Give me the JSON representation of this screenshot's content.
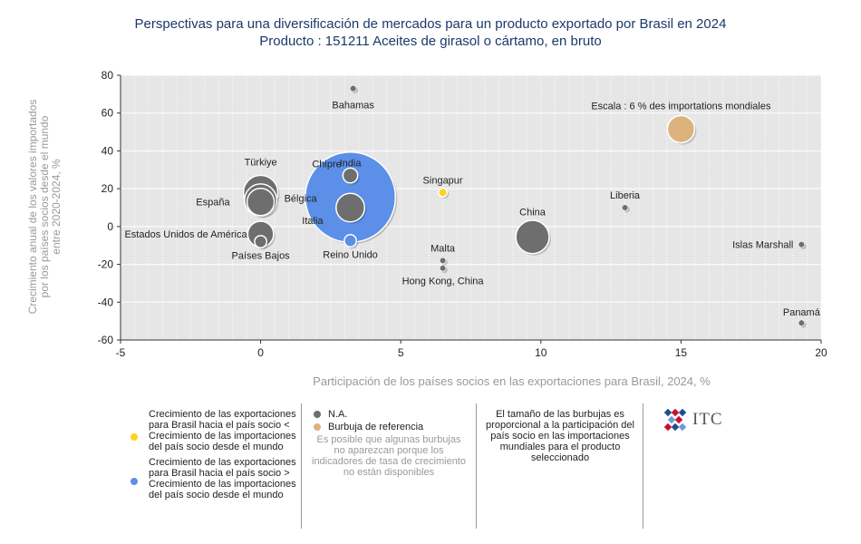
{
  "header": {
    "title_line1": "Perspectivas para una diversificación de mercados para un producto exportado por Brasil en 2024",
    "title_line2": "Producto : 151211 Aceites de girasol o cártamo, en bruto"
  },
  "colors": {
    "na": "#6e6e6e",
    "faster": "#5b8fe8",
    "slower": "#ffd21f",
    "reference": "#dcb27e",
    "plot_bg": "#e6e6e6"
  },
  "chart_data": {
    "type": "scatter",
    "xlabel": "Participación de los países socios en las exportaciones para Brasil, 2024, %",
    "ylabel_lines": [
      "Crecimiento anual de los valores importados",
      "por los países socios desde el mundo",
      "entre 2020-2024, %"
    ],
    "xlim": [
      -5,
      20
    ],
    "ylim": [
      -60,
      80
    ],
    "xticks": [
      -5,
      0,
      5,
      10,
      15,
      20
    ],
    "yticks": [
      80,
      60,
      40,
      20,
      0,
      -20,
      -40,
      -60
    ],
    "grid": true,
    "reference_label": "Escala : 6 % des importations mondiales",
    "points": [
      {
        "name": "Bahamas",
        "x": 3.3,
        "y": 73,
        "size": 0.05,
        "category": "na"
      },
      {
        "name": "India",
        "x": 3.2,
        "y": 27,
        "size": 0.3,
        "category": "na"
      },
      {
        "name": "Chipre",
        "x": 3.2,
        "y": 15.5,
        "size": 11.0,
        "category": "faster"
      },
      {
        "name": "Türkiye",
        "x": 0.0,
        "y": 18,
        "size": 1.6,
        "category": "na"
      },
      {
        "name": "Bélgica",
        "x": 0.0,
        "y": 14,
        "size": 1.4,
        "category": "na"
      },
      {
        "name": "España",
        "x": 0.0,
        "y": 13,
        "size": 1.0,
        "category": "na"
      },
      {
        "name": "Italia",
        "x": 3.2,
        "y": 10,
        "size": 1.1,
        "category": "na"
      },
      {
        "name": "Singapur",
        "x": 6.5,
        "y": 18,
        "size": 0.1,
        "category": "slower"
      },
      {
        "name": "China",
        "x": 9.7,
        "y": -5.5,
        "size": 1.5,
        "category": "na"
      },
      {
        "name": "Liberia",
        "x": 13.0,
        "y": 10,
        "size": 0.05,
        "category": "na"
      },
      {
        "name": "Estados Unidos de América",
        "x": 0.0,
        "y": -4,
        "size": 0.9,
        "category": "na"
      },
      {
        "name": "Países Bajos",
        "x": 0.0,
        "y": -8,
        "size": 0.2,
        "category": "na"
      },
      {
        "name": "Reino Unido",
        "x": 3.2,
        "y": -7.5,
        "size": 0.2,
        "category": "faster"
      },
      {
        "name": "Malta",
        "x": 6.5,
        "y": -18,
        "size": 0.05,
        "category": "na"
      },
      {
        "name": "Hong Kong, China",
        "x": 6.5,
        "y": -22,
        "size": 0.05,
        "category": "na"
      },
      {
        "name": "Islas Marshall",
        "x": 19.3,
        "y": -9.5,
        "size": 0.05,
        "category": "na"
      },
      {
        "name": "Panamá",
        "x": 19.3,
        "y": -51,
        "size": 0.05,
        "category": "na"
      },
      {
        "name": "Escala : 6 % des importations mondiales",
        "x": 15.0,
        "y": 51.5,
        "size": 1.0,
        "category": "reference"
      }
    ]
  },
  "legend": {
    "slower_text": "Crecimiento de las exportaciones para Brasil hacia el país socio < Crecimiento de las importaciones del país socio desde el mundo",
    "faster_text": "Crecimiento de las exportaciones para Brasil hacia el país socio > Crecimiento de las importaciones del país socio desde el mundo",
    "na_text": "N.A.",
    "reference_text": "Burbuja de referencia",
    "missing_note": "Es posible que algunas burbujas no aparezcan porque los indicadores de tasa de crecimiento no están disponibles",
    "size_note": "El tamaño de las burbujas es proporcional a la participación del país socio en las importaciones mundiales para el producto seleccionado"
  },
  "logo": {
    "text": "ITC"
  }
}
